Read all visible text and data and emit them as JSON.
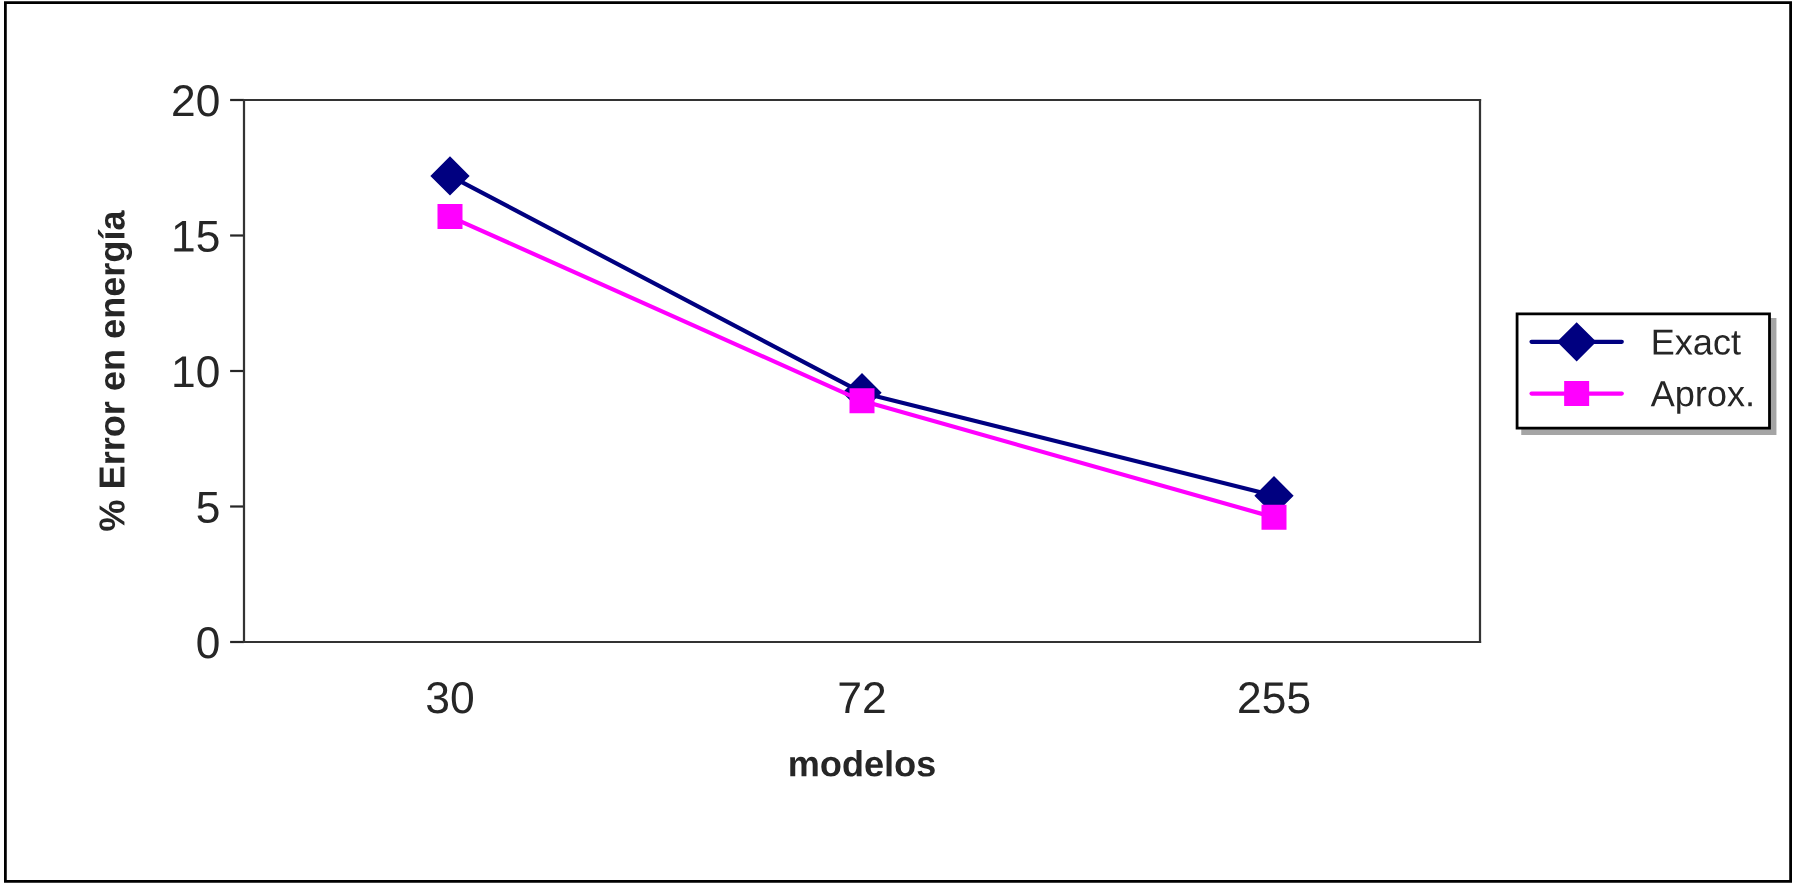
{
  "chart_data": {
    "type": "line",
    "xlabel": "modelos",
    "ylabel": "% Error en energía",
    "categories": [
      "30",
      "72",
      "255"
    ],
    "series": [
      {
        "name": "Exact",
        "color": "#000080",
        "values": [
          17.2,
          9.2,
          5.4
        ],
        "marker": "diamond"
      },
      {
        "name": "Aprox.",
        "color": "#ff00ff",
        "values": [
          15.7,
          8.9,
          4.6
        ],
        "marker": "square"
      }
    ],
    "ylim": [
      0,
      20
    ],
    "yticks": [
      0,
      5,
      10,
      15,
      20
    ],
    "grid": false,
    "legend": "right",
    "line_style": "solid"
  }
}
